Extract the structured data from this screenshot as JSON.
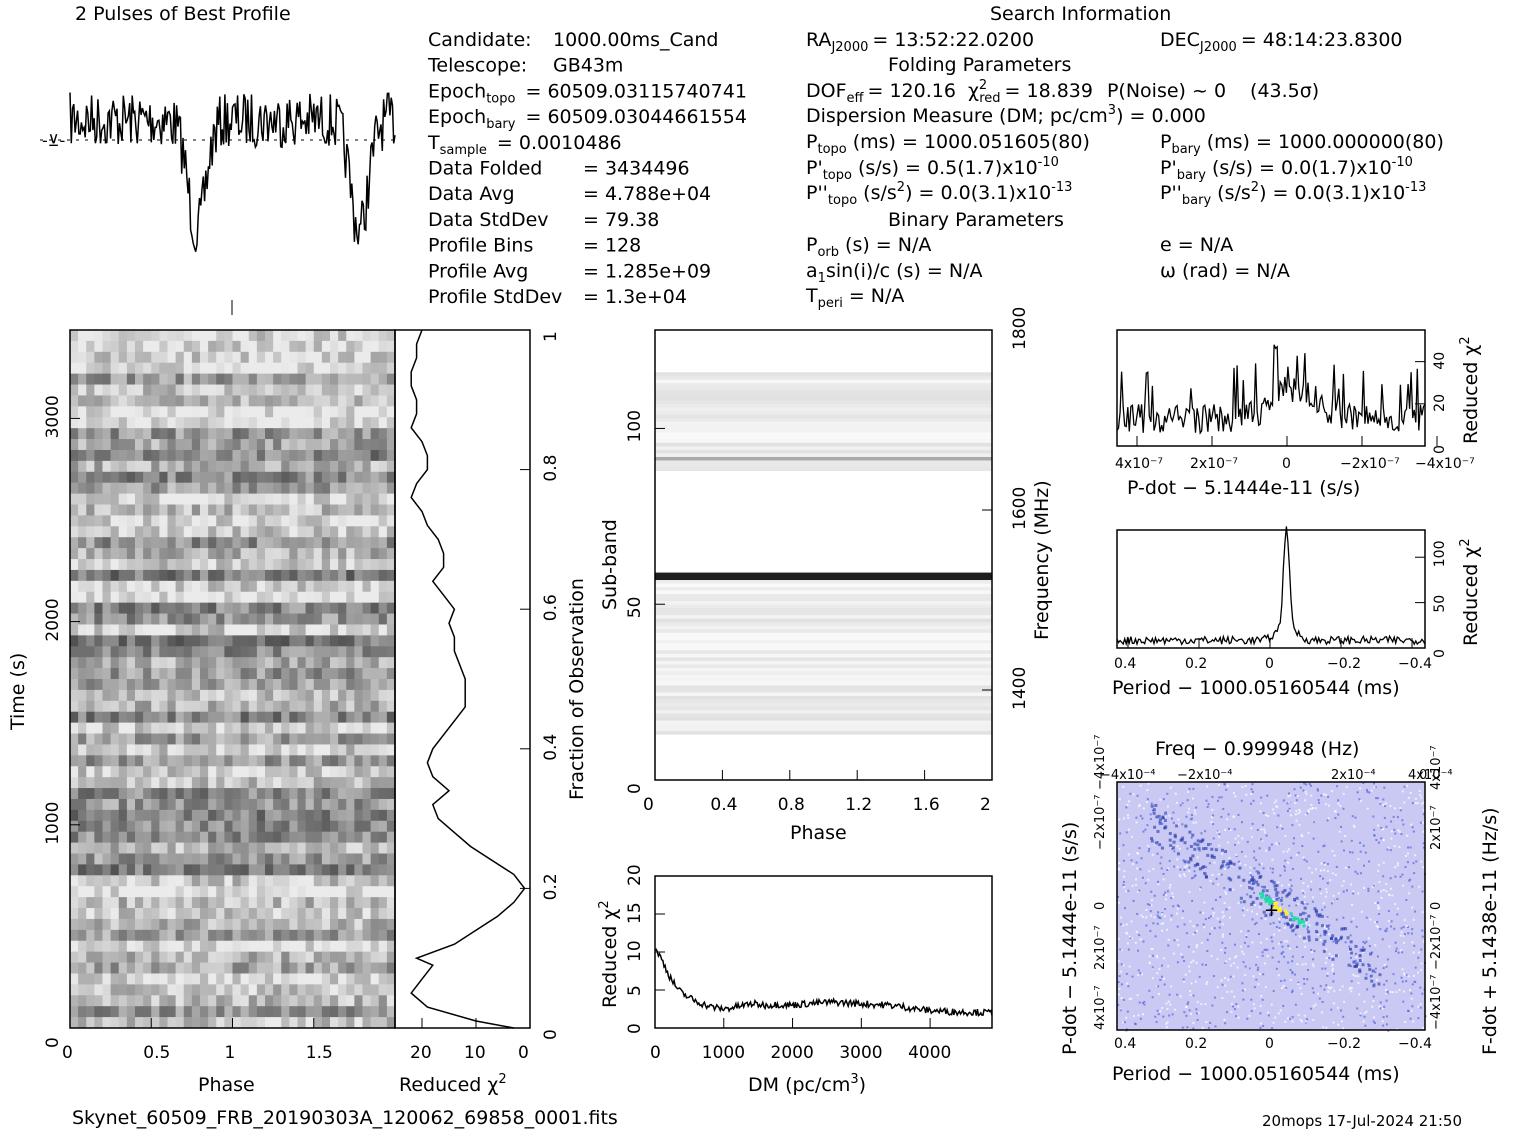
{
  "header": {
    "profile_title": "2 Pulses of Best Profile",
    "search_title": "Search Information",
    "folding_title": "Folding Parameters",
    "binary_title": "Binary Parameters"
  },
  "info_left": [
    {
      "label": "Candidate:",
      "value": "1000.00ms_Cand"
    },
    {
      "label": "Telescope:",
      "value": "GB43m"
    },
    {
      "label": "Epoch",
      "sub": "topo",
      "value": "= 60509.03115740741"
    },
    {
      "label": "Epoch",
      "sub": "bary",
      "value": "= 60509.03044661554"
    },
    {
      "label": "T",
      "sub": "sample",
      "value": "=   0.0010486"
    },
    {
      "label": "Data Folded",
      "value": "=   3434496"
    },
    {
      "label": "Data Avg",
      "value": "=   4.788e+04"
    },
    {
      "label": "Data StdDev",
      "value": "=   79.38"
    },
    {
      "label": "Profile Bins",
      "value": "=   128"
    },
    {
      "label": "Profile Avg",
      "value": "=   1.285e+09"
    },
    {
      "label": "Profile StdDev",
      "value": "=   1.3e+04"
    }
  ],
  "info_right": {
    "ra": {
      "label": "RA",
      "sub": "J2000",
      "value": "= 13:52:22.0200"
    },
    "dec": {
      "label": "DEC",
      "sub": "J2000",
      "value": "= 48:14:23.8300"
    },
    "dof": "DOF",
    "dof_sub": "eff",
    "dof_value": "= 120.16",
    "chi": "χ",
    "chi_sup": "2",
    "chi_sub": "red",
    "chi_value": "= 18.839",
    "pnoise": "P(Noise) ~ 0",
    "sigma": "(43.5σ)",
    "dm_line": "Dispersion Measure (DM; pc/cm",
    "dm_sup": "3",
    "dm_end": ") = 0.000",
    "p_topo": "(ms) =  1000.051605(80)",
    "p_bary": "(ms) =  1000.000000(80)",
    "pd_topo": "(s/s) =  0.5(1.7)x10",
    "pd_topo_exp": "-10",
    "pd_bary": "(s/s) = 0.0(1.7)x10",
    "pd_bary_exp": "-10",
    "pdd_topo": "(s/s",
    "pdd_topo_end": ") = 0.0(3.1)x10",
    "pdd_topo_exp": "-13",
    "pdd_bary": "(s/s",
    "pdd_bary_end": ") = 0.0(3.1)x10",
    "pdd_bary_exp": "-13",
    "porb": "(s) = N/A",
    "e": "e = N/A",
    "a1": "sin(i)/c (s) = N/A",
    "omega": "ω (rad) = N/A",
    "tperi": "= N/A"
  },
  "labels": {
    "time_axis": "Time (s)",
    "phase": "Phase",
    "reduced_chi2": "Reduced χ",
    "fraction": "Fraction of Observation",
    "subband": "Sub-band",
    "frequency": "Frequency (MHz)",
    "dm_axis": "DM (pc/cm",
    "pdot_axis": "P-dot − 5.1444e-11 (s/s)",
    "period_axis": "Period − 1000.05160544 (ms)",
    "freq_axis": "Freq − 0.999948 (Hz)",
    "fdot_axis": "F-dot + 5.1438e-11 (Hz/s)",
    "filename": "Skynet_60509_FRB_20190303A_120062_69858_0001.fits",
    "footer_right": "20mops  17-Jul-2024 21:50"
  },
  "colors": {
    "line": "#000000",
    "heat_low": "#ffffff",
    "heat_mid": "#3344cc",
    "heat_high": "#22ccaa"
  },
  "chart_data": [
    {
      "type": "line",
      "name": "pulse profile",
      "title": "2 Pulses of Best Profile",
      "x_range": [
        0,
        2
      ],
      "shape": "two broad dips near phase 0.75 and 1.75"
    },
    {
      "type": "heatmap",
      "name": "time-phase",
      "xlabel": "Phase",
      "ylabel": "Time (s)",
      "xlim": [
        0,
        2
      ],
      "ylim": [
        0,
        3435
      ],
      "x_ticks": [
        "0",
        "0.5",
        "1",
        "1.5"
      ],
      "y_ticks": [
        "0",
        "1000",
        "2000",
        "3000"
      ]
    },
    {
      "type": "line",
      "name": "reduced chi2 vs fraction",
      "xlabel": "Reduced χ²",
      "ylabel": "Fraction of Observation",
      "xlim": [
        25,
        0
      ],
      "ylim": [
        0,
        1
      ],
      "x_ticks": [
        "20",
        "10",
        "0"
      ],
      "y_ticks": [
        "0",
        "0.2",
        "0.4",
        "0.6",
        "0.8",
        "1"
      ],
      "points": [
        [
          3,
          0.0
        ],
        [
          10,
          0.01
        ],
        [
          19,
          0.03
        ],
        [
          22,
          0.05
        ],
        [
          20,
          0.07
        ],
        [
          18,
          0.09
        ],
        [
          21,
          0.1
        ],
        [
          14,
          0.12
        ],
        [
          10,
          0.14
        ],
        [
          6,
          0.16
        ],
        [
          3,
          0.18
        ],
        [
          1,
          0.2
        ],
        [
          3,
          0.22
        ],
        [
          7,
          0.24
        ],
        [
          11,
          0.26
        ],
        [
          14,
          0.28
        ],
        [
          17,
          0.3
        ],
        [
          18,
          0.32
        ],
        [
          15,
          0.34
        ],
        [
          18,
          0.36
        ],
        [
          19,
          0.38
        ],
        [
          18,
          0.4
        ],
        [
          16,
          0.42
        ],
        [
          14,
          0.44
        ],
        [
          12,
          0.46
        ],
        [
          12,
          0.48
        ],
        [
          12,
          0.5
        ],
        [
          13,
          0.52
        ],
        [
          14,
          0.54
        ],
        [
          14,
          0.56
        ],
        [
          15,
          0.58
        ],
        [
          14,
          0.6
        ],
        [
          16,
          0.62
        ],
        [
          18,
          0.64
        ],
        [
          16,
          0.66
        ],
        [
          16,
          0.68
        ],
        [
          17,
          0.7
        ],
        [
          19,
          0.72
        ],
        [
          20,
          0.74
        ],
        [
          22,
          0.76
        ],
        [
          21,
          0.78
        ],
        [
          19,
          0.8
        ],
        [
          19,
          0.82
        ],
        [
          20,
          0.84
        ],
        [
          22,
          0.86
        ],
        [
          21,
          0.88
        ],
        [
          21,
          0.9
        ],
        [
          22,
          0.92
        ],
        [
          22,
          0.94
        ],
        [
          21,
          0.96
        ],
        [
          21,
          0.98
        ],
        [
          20,
          1.0
        ]
      ]
    },
    {
      "type": "heatmap",
      "name": "subband-phase",
      "xlabel": "Phase",
      "ylabel": "Sub-band",
      "xlim": [
        0,
        2
      ],
      "ylim": [
        0,
        128
      ],
      "x_ticks": [
        "0",
        "0.4",
        "0.8",
        "1.2",
        "1.6",
        "2"
      ],
      "y_ticks": [
        "0",
        "50",
        "100"
      ],
      "y2label": "Frequency (MHz)",
      "y2_ticks": [
        "1400",
        "1600",
        "1800"
      ]
    },
    {
      "type": "line",
      "name": "reduced chi2 vs DM",
      "xlabel": "DM (pc/cm³)",
      "ylabel": "Reduced χ²",
      "xlim": [
        0,
        4900
      ],
      "ylim": [
        0,
        20
      ],
      "x_ticks": [
        "0",
        "1000",
        "2000",
        "3000",
        "4000"
      ],
      "y_ticks": [
        "0",
        "5",
        "10",
        "15",
        "20"
      ],
      "points": [
        [
          0,
          10.5
        ],
        [
          100,
          9
        ],
        [
          200,
          7
        ],
        [
          300,
          5.5
        ],
        [
          400,
          4.5
        ],
        [
          600,
          3.5
        ],
        [
          800,
          2.8
        ],
        [
          1000,
          2.5
        ],
        [
          1200,
          2.8
        ],
        [
          1400,
          3.2
        ],
        [
          1600,
          3.0
        ],
        [
          1800,
          3.1
        ],
        [
          2000,
          3.0
        ],
        [
          2200,
          3.2
        ],
        [
          2400,
          3.3
        ],
        [
          2600,
          3.4
        ],
        [
          2800,
          3.3
        ],
        [
          3000,
          3.2
        ],
        [
          3200,
          3.1
        ],
        [
          3400,
          3.0
        ],
        [
          3600,
          2.8
        ],
        [
          3800,
          2.5
        ],
        [
          4000,
          2.3
        ],
        [
          4200,
          2.2
        ],
        [
          4400,
          2.1
        ],
        [
          4600,
          2.1
        ],
        [
          4900,
          2.0
        ]
      ]
    },
    {
      "type": "line",
      "name": "reduced chi2 vs P-dot",
      "xlabel": "P-dot − 5.1444e-11 (s/s)",
      "ylabel": "Reduced χ²",
      "xlim": [
        4.3e-07,
        -4.3e-07
      ],
      "ylim": [
        0,
        55
      ],
      "x_ticks": [
        "4×10⁻⁷",
        "2×10⁻⁷",
        "0",
        "−2×10⁻⁷",
        "−4×10⁻⁷"
      ],
      "y_ticks": [
        "0",
        "20",
        "40"
      ]
    },
    {
      "type": "line",
      "name": "reduced chi2 vs period",
      "xlabel": "Period − 1000.05160544 (ms)",
      "ylabel": "Reduced χ²",
      "xlim": [
        0.43,
        -0.43
      ],
      "ylim": [
        0,
        130
      ],
      "x_ticks": [
        "0.4",
        "0.2",
        "0",
        "−0.2",
        "−0.4"
      ],
      "y_ticks": [
        "0",
        "50",
        "100"
      ],
      "peak": [
        -0.05,
        120
      ]
    },
    {
      "type": "heatmap",
      "name": "P-Pdot plane",
      "xlabel": "Period − 1000.05160544 (ms)",
      "ylabel": "P-dot − 5.1444e-11 (s/s)",
      "top_label": "Freq − 0.999948 (Hz)",
      "right_label": "F-dot + 5.1438e-11 (Hz/s)",
      "x_ticks": [
        "0.4",
        "0.2",
        "0",
        "−0.2",
        "−0.4"
      ],
      "top_ticks": [
        "−4×10⁻⁴",
        "−2×10⁻⁴",
        "0",
        "2×10⁻⁴",
        "4×10⁻⁴"
      ],
      "y_ticks": [
        "−4×10⁻⁷",
        "−2×10⁻⁷",
        "0",
        "2×10⁻⁷",
        "4×10⁻⁷"
      ],
      "right_ticks": [
        "−4×10⁻⁷",
        "−2×10⁻⁷",
        "0",
        "2×10⁻⁷",
        "4×10⁻⁷"
      ]
    }
  ]
}
